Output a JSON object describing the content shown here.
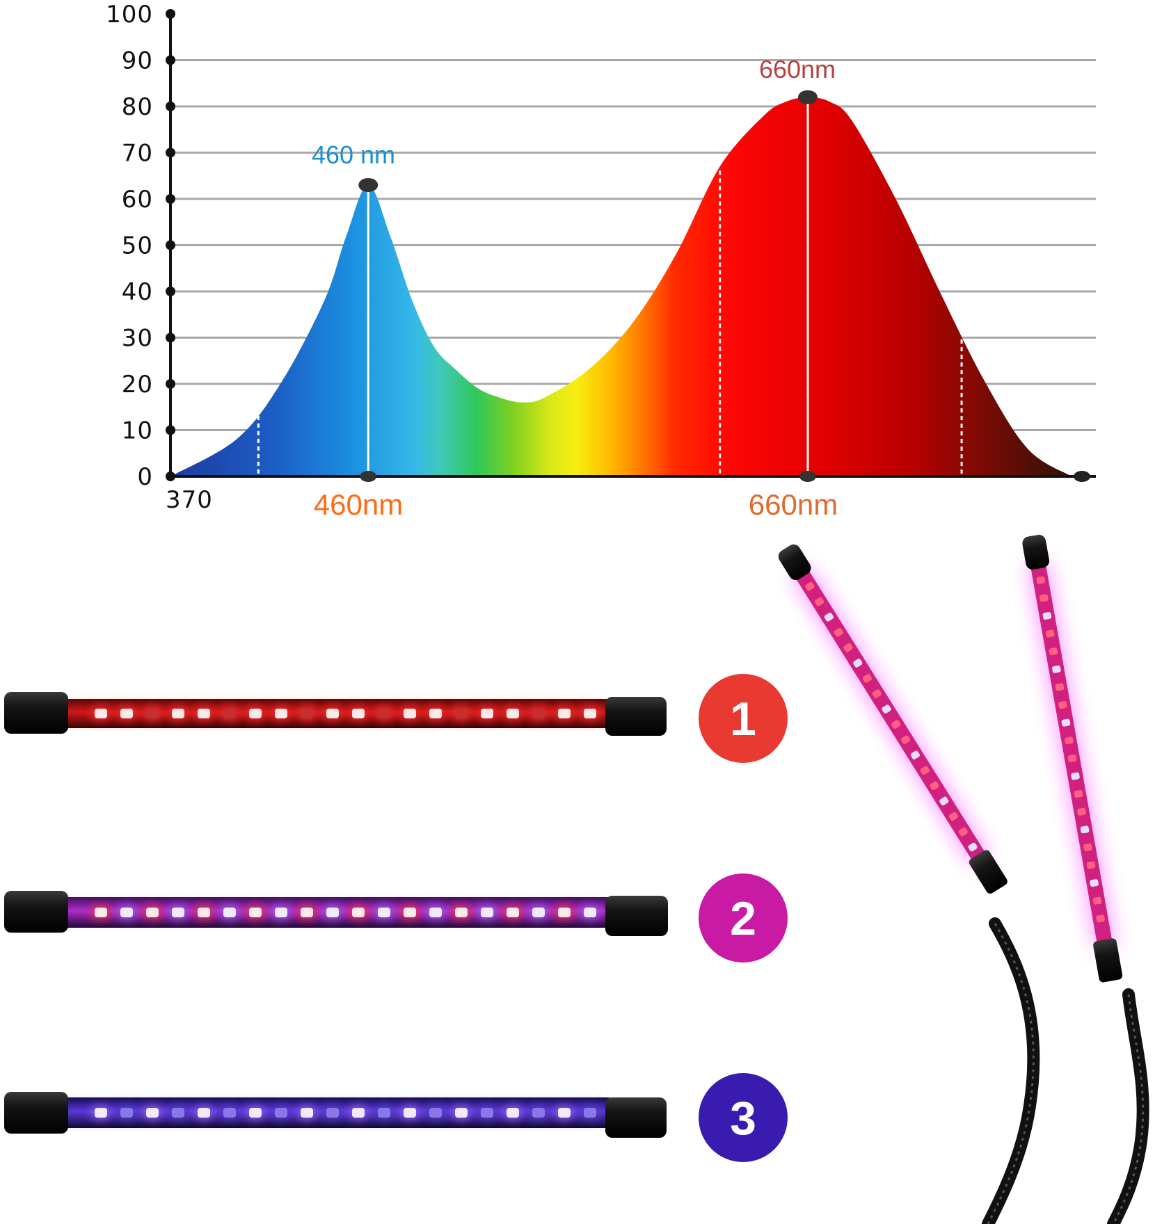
{
  "chart_data": {
    "type": "area",
    "title": "",
    "xlabel": "",
    "ylabel": "",
    "ylim": [
      0,
      100
    ],
    "yticks": [
      0,
      10,
      20,
      30,
      40,
      50,
      60,
      70,
      80,
      90,
      100
    ],
    "x_start_label": "370",
    "x_tick_labels": [
      "460nm",
      "660nm"
    ],
    "peaks": [
      {
        "label": "460 nm",
        "wavelength": 460,
        "value": 63,
        "color": "#1a8fd0"
      },
      {
        "label": "660nm",
        "wavelength": 660,
        "value": 82,
        "color": "#b84040"
      }
    ],
    "series": [
      {
        "x": [
          370,
          400,
          420,
          440,
          450,
          460,
          470,
          480,
          490,
          500,
          510,
          520,
          530,
          540,
          560,
          580,
          600,
          620,
          640,
          650,
          660,
          670,
          680,
          700,
          720,
          740,
          760,
          780
        ],
        "y": [
          0,
          8,
          20,
          38,
          52,
          63,
          52,
          38,
          28,
          23,
          19,
          17,
          16,
          17,
          23,
          33,
          48,
          67,
          78,
          81,
          82,
          81,
          77,
          60,
          40,
          21,
          6,
          0
        ]
      }
    ],
    "grid": true,
    "legend": "none"
  },
  "strips": [
    {
      "number": "1",
      "mode": "red",
      "badge_color": "#e83a30"
    },
    {
      "number": "2",
      "mode": "red-blue",
      "badge_color": "#c91aa6"
    },
    {
      "number": "3",
      "mode": "blue",
      "badge_color": "#3a1bb0"
    }
  ]
}
